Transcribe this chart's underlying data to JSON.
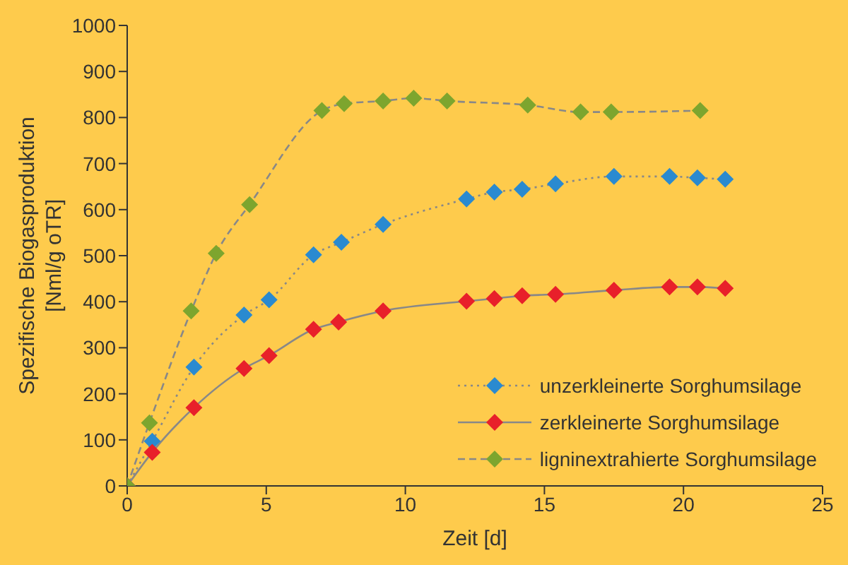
{
  "chart_data": {
    "type": "line",
    "xlabel": "Zeit [d]",
    "ylabel": "Spezifische Biogasproduktion [Nml/g oTR]",
    "xlim": [
      0,
      25
    ],
    "xticks": [
      0,
      5,
      10,
      15,
      20,
      25
    ],
    "ylim": [
      0,
      1000
    ],
    "yticks": [
      0,
      100,
      200,
      300,
      400,
      500,
      600,
      700,
      800,
      900,
      1000
    ],
    "grid": false,
    "legend": "bottom right",
    "marker": "diamond",
    "series": [
      {
        "name": "unzerkleinerte Sorghumsilage",
        "color": "#2a8ad0",
        "line_style": "dotted",
        "x": [
          0,
          0.9,
          2.4,
          4.2,
          5.1,
          6.7,
          7.7,
          9.2,
          12.2,
          13.2,
          14.2,
          15.4,
          17.5,
          19.5,
          20.5,
          21.5
        ],
        "values": [
          0,
          97,
          258,
          371,
          404,
          502,
          529,
          568,
          623,
          638,
          644,
          656,
          672,
          672,
          669,
          666
        ]
      },
      {
        "name": "zerkleinerte Sorghumsilage",
        "color": "#e8202a",
        "line_style": "solid",
        "x": [
          0,
          0.9,
          2.4,
          4.2,
          5.1,
          6.7,
          7.6,
          9.2,
          12.2,
          13.2,
          14.2,
          15.4,
          17.5,
          19.5,
          20.5,
          21.5
        ],
        "values": [
          0,
          73,
          170,
          255,
          283,
          340,
          356,
          380,
          401,
          407,
          413,
          416,
          425,
          432,
          432,
          429
        ]
      },
      {
        "name": "ligninextrahierte Sorghumsilage",
        "color": "#7da52e",
        "line_style": "dashed",
        "x": [
          0,
          0.8,
          2.3,
          3.2,
          4.4,
          7.0,
          7.8,
          9.2,
          10.3,
          11.5,
          14.4,
          16.3,
          17.4,
          20.6
        ],
        "values": [
          0,
          137,
          380,
          505,
          611,
          815,
          830,
          836,
          842,
          836,
          827,
          812,
          812,
          815
        ]
      }
    ]
  }
}
